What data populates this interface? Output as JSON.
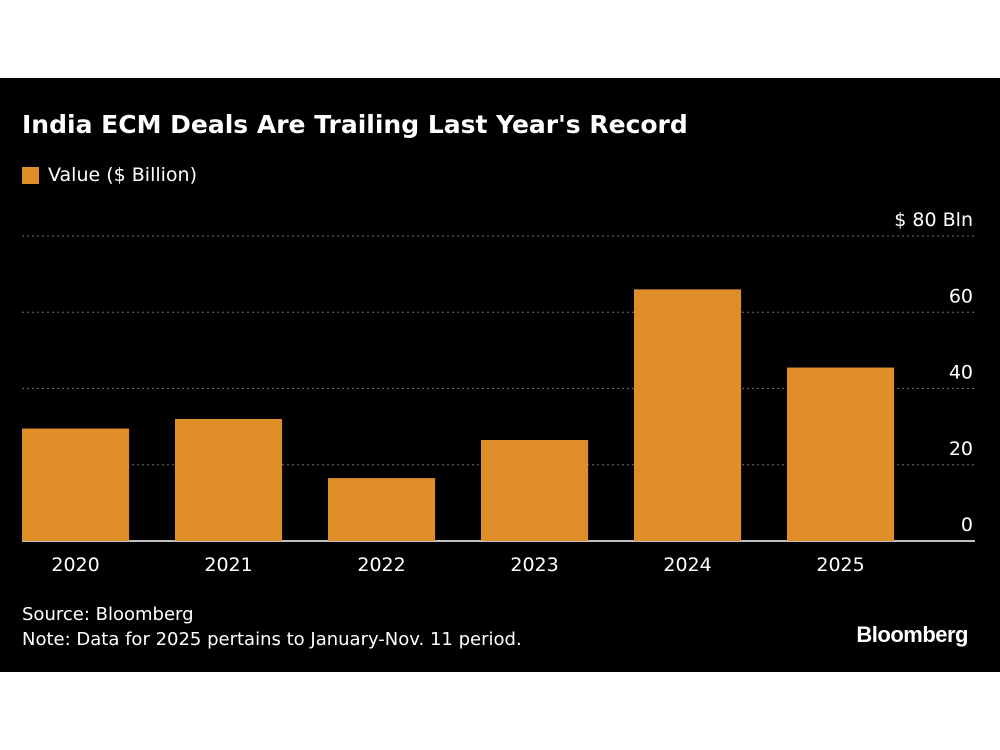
{
  "colors": {
    "bar": "#e08e2a",
    "background": "#000000",
    "text": "#ffffff",
    "grid": "#6e6e6e"
  },
  "chart_data": {
    "type": "bar",
    "title": "India ECM Deals Are Trailing Last Year's Record",
    "legend": [
      {
        "label": "Value ($ Billion)",
        "color": "#e08e2a"
      }
    ],
    "categories": [
      "2020",
      "2021",
      "2022",
      "2023",
      "2024",
      "2025"
    ],
    "series": [
      {
        "name": "Value ($ Billion)",
        "values": [
          29.5,
          32,
          16.5,
          26.5,
          66,
          45.5
        ]
      }
    ],
    "ylim": [
      0,
      80
    ],
    "yticks": [
      0,
      20,
      40,
      60,
      80
    ],
    "ytick_labels": [
      "0",
      "20",
      "40",
      "60",
      "$ 80 Bln"
    ],
    "yaxis_side": "right",
    "grid": true
  },
  "footer": {
    "source": "Source: Bloomberg",
    "note": "Note: Data for 2025 pertains to January-Nov. 11 period.",
    "logo": "Bloomberg"
  }
}
